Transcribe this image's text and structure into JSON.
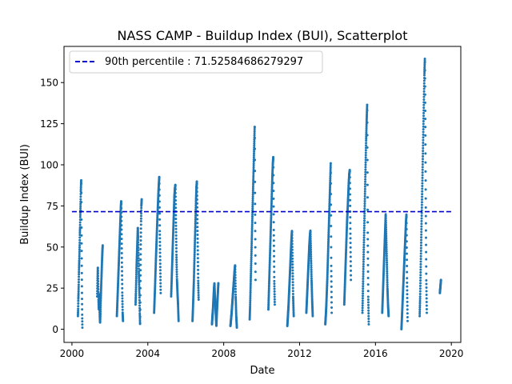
{
  "chart_data": {
    "type": "scatter",
    "title": "NASS CAMP - Buildup Index (BUI), Scatterplot",
    "xlabel": "Date",
    "ylabel": "Buildup Index (BUI)",
    "x_ticks": [
      "2000",
      "2004",
      "2008",
      "2012",
      "2016",
      "2020"
    ],
    "y_ticks": [
      "0",
      "25",
      "50",
      "75",
      "100",
      "125",
      "150"
    ],
    "xlim": [
      "1999-08-01",
      "2020-07-01"
    ],
    "ylim": [
      -8,
      172
    ],
    "grid": false,
    "legend_position": "top-left",
    "colors": {
      "points": "#1f77b4",
      "percentile_line": "#0000cd"
    },
    "percentile": {
      "label": "90th percentile : 71.52584686279297",
      "value": 71.52584686279297,
      "style": "dashed"
    },
    "seasons": [
      {
        "start": "2000-04-25",
        "end": "2000-07-20",
        "values": [
          8,
          12,
          18,
          22,
          27,
          33,
          38,
          42,
          47,
          52,
          58,
          62,
          68,
          73,
          78,
          84,
          88,
          91,
          70,
          52,
          35,
          20,
          8,
          1
        ]
      },
      {
        "start": "2001-05-01",
        "end": "2001-08-15",
        "values": [
          20,
          30,
          38,
          28,
          18,
          12,
          22,
          15,
          8,
          4,
          10,
          18,
          24,
          30,
          36,
          42,
          47,
          51
        ]
      },
      {
        "start": "2002-05-15",
        "end": "2002-09-10",
        "values": [
          8,
          14,
          20,
          26,
          32,
          38,
          44,
          50,
          56,
          62,
          68,
          74,
          78,
          60,
          40,
          22,
          10,
          5
        ]
      },
      {
        "start": "2003-05-10",
        "end": "2003-09-05",
        "values": [
          15,
          22,
          30,
          38,
          44,
          50,
          56,
          62,
          55,
          45,
          35,
          28,
          20,
          10,
          3,
          30,
          50,
          65,
          75,
          79
        ]
      },
      {
        "start": "2004-05-01",
        "end": "2004-09-05",
        "values": [
          10,
          18,
          26,
          35,
          44,
          52,
          60,
          68,
          75,
          82,
          88,
          93,
          60,
          40,
          22
        ]
      },
      {
        "start": "2005-03-25",
        "end": "2005-08-15",
        "values": [
          20,
          30,
          40,
          50,
          60,
          70,
          80,
          85,
          88,
          65,
          45,
          30,
          22,
          15,
          5
        ]
      },
      {
        "start": "2006-05-10",
        "end": "2006-09-05",
        "values": [
          5,
          12,
          20,
          28,
          38,
          48,
          58,
          68,
          78,
          86,
          90,
          70,
          50,
          30,
          18
        ]
      },
      {
        "start": "2007-05-20",
        "end": "2007-09-20",
        "values": [
          3,
          8,
          12,
          18,
          24,
          28,
          20,
          14,
          8,
          2,
          10,
          16,
          22,
          28
        ]
      },
      {
        "start": "2008-05-10",
        "end": "2008-09-10",
        "values": [
          2,
          6,
          10,
          15,
          20,
          25,
          30,
          35,
          39,
          20,
          8,
          1
        ]
      },
      {
        "start": "2009-05-15",
        "end": "2009-09-05",
        "values": [
          6,
          14,
          24,
          34,
          44,
          54,
          64,
          74,
          84,
          94,
          104,
          114,
          124,
          70,
          30
        ]
      },
      {
        "start": "2010-05-10",
        "end": "2010-09-10",
        "values": [
          12,
          22,
          32,
          42,
          52,
          62,
          72,
          82,
          92,
          100,
          105,
          60,
          30,
          15
        ]
      },
      {
        "start": "2011-05-10",
        "end": "2011-09-10",
        "values": [
          2,
          8,
          14,
          22,
          30,
          38,
          46,
          54,
          60,
          40,
          20,
          8
        ]
      },
      {
        "start": "2012-05-10",
        "end": "2012-09-10",
        "values": [
          10,
          18,
          26,
          34,
          42,
          50,
          56,
          60,
          45,
          30,
          18,
          8
        ]
      },
      {
        "start": "2013-05-10",
        "end": "2013-09-10",
        "values": [
          3,
          8,
          14,
          22,
          30,
          40,
          50,
          60,
          70,
          80,
          90,
          101,
          40,
          10
        ]
      },
      {
        "start": "2014-05-10",
        "end": "2014-09-15",
        "values": [
          15,
          25,
          35,
          45,
          55,
          65,
          72,
          80,
          88,
          94,
          97,
          60,
          30
        ]
      },
      {
        "start": "2015-04-25",
        "end": "2015-08-25",
        "values": [
          10,
          25,
          40,
          55,
          70,
          85,
          100,
          115,
          127,
          137,
          60,
          20,
          3
        ]
      },
      {
        "start": "2016-05-10",
        "end": "2016-09-10",
        "values": [
          10,
          20,
          30,
          40,
          50,
          60,
          70,
          55,
          40,
          25,
          15,
          8
        ]
      },
      {
        "start": "2017-05-15",
        "end": "2017-09-10",
        "values": [
          0,
          8,
          16,
          24,
          32,
          40,
          48,
          56,
          64,
          70,
          30,
          5
        ]
      },
      {
        "start": "2018-05-01",
        "end": "2018-09-15",
        "values": [
          8,
          20,
          35,
          50,
          65,
          80,
          95,
          110,
          125,
          140,
          155,
          165,
          120,
          70,
          30,
          10
        ]
      },
      {
        "start": "2019-05-25",
        "end": "2019-06-15",
        "values": [
          22,
          26,
          30
        ]
      }
    ]
  }
}
